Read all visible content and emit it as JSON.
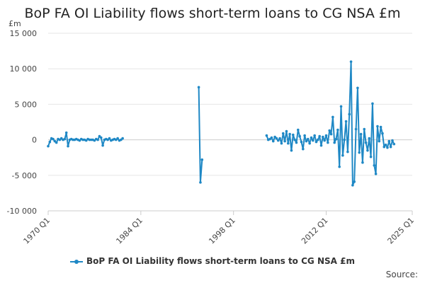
{
  "title": "BoP FA OI Liability flows short-term loans to CG NSA £m",
  "source_label": "Source:",
  "colors": {
    "series": "#1f88c5",
    "grid": "#e6e6e6",
    "axis": "#cccccc"
  },
  "chart_data": {
    "type": "line",
    "title": "BoP FA OI Liability flows short-term loans to CG NSA £m",
    "ylabel": "£m",
    "ylim": [
      -10000,
      15000
    ],
    "yticks": [
      15000,
      10000,
      5000,
      0,
      -5000,
      -10000
    ],
    "ytick_labels": [
      "15 000",
      "10 000",
      "5 000",
      "0",
      "-5 000",
      "-10 000"
    ],
    "xlim": [
      "1970 Q1",
      "2025 Q1"
    ],
    "xticks": [
      "1970 Q1",
      "1984 Q1",
      "1998 Q1",
      "2012 Q1",
      "2025 Q1"
    ],
    "grid": true,
    "legend": "bottom",
    "series": [
      {
        "name": "BoP FA OI Liability flows short-term loans to CG NSA £m",
        "segments": [
          [
            [
              "1970 Q1",
              -900
            ],
            [
              "1970 Q2",
              -300
            ],
            [
              "1970 Q3",
              200
            ],
            [
              "1970 Q4",
              100
            ],
            [
              "1971 Q1",
              -200
            ],
            [
              "1971 Q2",
              -400
            ],
            [
              "1971 Q3",
              100
            ],
            [
              "1971 Q4",
              0
            ],
            [
              "1972 Q1",
              200
            ],
            [
              "1972 Q2",
              0
            ],
            [
              "1972 Q3",
              100
            ],
            [
              "1972 Q4",
              1000
            ],
            [
              "1973 Q1",
              -900
            ],
            [
              "1973 Q2",
              0
            ],
            [
              "1973 Q3",
              100
            ],
            [
              "1973 Q4",
              0
            ],
            [
              "1974 Q1",
              0
            ],
            [
              "1974 Q2",
              100
            ],
            [
              "1974 Q3",
              0
            ],
            [
              "1974 Q4",
              -100
            ],
            [
              "1975 Q1",
              100
            ],
            [
              "1975 Q2",
              0
            ],
            [
              "1975 Q3",
              0
            ],
            [
              "1975 Q4",
              -100
            ],
            [
              "1976 Q1",
              100
            ],
            [
              "1976 Q2",
              0
            ],
            [
              "1976 Q3",
              0
            ],
            [
              "1976 Q4",
              0
            ],
            [
              "1977 Q1",
              -100
            ],
            [
              "1977 Q2",
              100
            ],
            [
              "1977 Q3",
              0
            ],
            [
              "1977 Q4",
              500
            ],
            [
              "1978 Q1",
              300
            ],
            [
              "1978 Q2",
              -800
            ],
            [
              "1978 Q3",
              0
            ],
            [
              "1978 Q4",
              100
            ],
            [
              "1979 Q1",
              0
            ],
            [
              "1979 Q2",
              200
            ],
            [
              "1979 Q3",
              -100
            ],
            [
              "1979 Q4",
              0
            ],
            [
              "1980 Q1",
              100
            ],
            [
              "1980 Q2",
              0
            ],
            [
              "1980 Q3",
              200
            ],
            [
              "1980 Q4",
              -100
            ],
            [
              "1981 Q1",
              0
            ],
            [
              "1981 Q2",
              200
            ]
          ],
          [
            [
              "1992 Q4",
              7400
            ],
            [
              "1993 Q1",
              -6000
            ],
            [
              "1993 Q2",
              -2800
            ]
          ],
          [
            [
              "2003 Q1",
              600
            ],
            [
              "2003 Q2",
              0
            ],
            [
              "2003 Q3",
              100
            ],
            [
              "2003 Q4",
              300
            ],
            [
              "2004 Q1",
              -200
            ],
            [
              "2004 Q2",
              400
            ],
            [
              "2004 Q3",
              200
            ],
            [
              "2004 Q4",
              -100
            ],
            [
              "2005 Q1",
              200
            ],
            [
              "2005 Q2",
              -500
            ],
            [
              "2005 Q3",
              900
            ],
            [
              "2005 Q4",
              -200
            ],
            [
              "2006 Q1",
              1200
            ],
            [
              "2006 Q2",
              -500
            ],
            [
              "2006 Q3",
              800
            ],
            [
              "2006 Q4",
              -1500
            ],
            [
              "2007 Q1",
              700
            ],
            [
              "2007 Q2",
              0
            ],
            [
              "2007 Q3",
              -400
            ],
            [
              "2007 Q4",
              1400
            ],
            [
              "2008 Q1",
              500
            ],
            [
              "2008 Q2",
              -300
            ],
            [
              "2008 Q3",
              -1300
            ],
            [
              "2008 Q4",
              600
            ],
            [
              "2009 Q1",
              -200
            ],
            [
              "2009 Q2",
              100
            ],
            [
              "2009 Q3",
              -500
            ],
            [
              "2009 Q4",
              300
            ],
            [
              "2010 Q1",
              -100
            ],
            [
              "2010 Q2",
              600
            ],
            [
              "2010 Q3",
              -300
            ],
            [
              "2010 Q4",
              0
            ],
            [
              "2011 Q1",
              500
            ],
            [
              "2011 Q2",
              -800
            ],
            [
              "2011 Q3",
              400
            ],
            [
              "2011 Q4",
              -100
            ],
            [
              "2012 Q1",
              600
            ],
            [
              "2012 Q2",
              -400
            ],
            [
              "2012 Q3",
              1300
            ],
            [
              "2012 Q4",
              800
            ],
            [
              "2013 Q1",
              3200
            ],
            [
              "2013 Q2",
              -400
            ],
            [
              "2013 Q3",
              100
            ],
            [
              "2013 Q4",
              1400
            ],
            [
              "2014 Q1",
              -3800
            ],
            [
              "2014 Q2",
              4700
            ],
            [
              "2014 Q3",
              -2200
            ],
            [
              "2014 Q4",
              0
            ],
            [
              "2015 Q1",
              2600
            ],
            [
              "2015 Q2",
              -1700
            ],
            [
              "2015 Q3",
              3600
            ],
            [
              "2015 Q4",
              11000
            ],
            [
              "2016 Q1",
              -6400
            ],
            [
              "2016 Q2",
              -5900
            ],
            [
              "2016 Q3",
              1500
            ],
            [
              "2016 Q4",
              7300
            ],
            [
              "2017 Q1",
              -1800
            ],
            [
              "2017 Q2",
              800
            ],
            [
              "2017 Q3",
              -3200
            ],
            [
              "2017 Q4",
              1500
            ],
            [
              "2018 Q1",
              -400
            ],
            [
              "2018 Q2",
              -1500
            ],
            [
              "2018 Q3",
              200
            ],
            [
              "2018 Q4",
              -2400
            ],
            [
              "2019 Q1",
              5100
            ],
            [
              "2019 Q2",
              -3600
            ],
            [
              "2019 Q3",
              -4800
            ],
            [
              "2019 Q4",
              1900
            ],
            [
              "2020 Q1",
              -200
            ],
            [
              "2020 Q2",
              1800
            ],
            [
              "2020 Q3",
              900
            ],
            [
              "2020 Q4",
              -1000
            ],
            [
              "2021 Q1",
              -700
            ],
            [
              "2021 Q2",
              -1100
            ],
            [
              "2021 Q3",
              -200
            ],
            [
              "2021 Q4",
              -1000
            ],
            [
              "2022 Q1",
              -100
            ],
            [
              "2022 Q2",
              -600
            ]
          ]
        ]
      }
    ]
  }
}
